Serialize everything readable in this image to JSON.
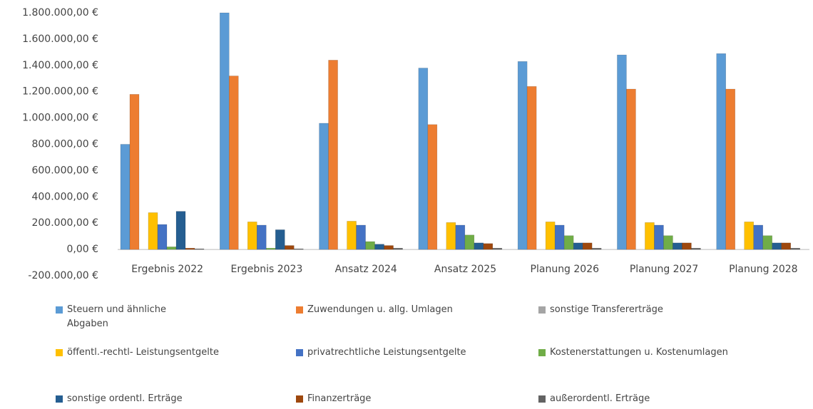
{
  "chart_data": {
    "type": "bar",
    "categories": [
      "Ergebnis 2022",
      "Ergebnis 2023",
      "Ansatz 2024",
      "Ansatz  2025",
      "Planung 2026",
      "Planung 2027",
      "Planung 2028"
    ],
    "series": [
      {
        "name": "Steuern und ähnliche Abgaben",
        "color": "#5b9bd5",
        "values": [
          800000,
          1800000,
          960000,
          1380000,
          1430000,
          1480000,
          1490000
        ]
      },
      {
        "name": "Zuwendungen u. allg. Umlagen",
        "color": "#ed7d31",
        "values": [
          1180000,
          1320000,
          1440000,
          950000,
          1240000,
          1220000,
          1220000
        ]
      },
      {
        "name": "sonstige Transfererträge",
        "color": "#a5a5a5",
        "values": [
          0,
          0,
          0,
          0,
          0,
          0,
          0
        ]
      },
      {
        "name": "öffentl.-rechtl- Leistungsentgelte",
        "color": "#ffc000",
        "values": [
          280000,
          210000,
          215000,
          205000,
          210000,
          205000,
          210000
        ]
      },
      {
        "name": "privatrechtliche Leistungsentgelte",
        "color": "#4472c4",
        "values": [
          190000,
          185000,
          185000,
          185000,
          185000,
          185000,
          185000
        ]
      },
      {
        "name": "Kostenerstattungen u. Kostenumlagen",
        "color": "#70ad47",
        "values": [
          20000,
          10000,
          60000,
          110000,
          105000,
          105000,
          105000
        ]
      },
      {
        "name": "sonstige ordentl. Erträge",
        "color": "#255e91",
        "values": [
          290000,
          150000,
          40000,
          50000,
          50000,
          50000,
          50000
        ]
      },
      {
        "name": "Finanzerträge",
        "color": "#9e480e",
        "values": [
          10000,
          30000,
          30000,
          45000,
          50000,
          50000,
          50000
        ]
      },
      {
        "name": "außerordentl. Erträge",
        "color": "#636363",
        "values": [
          5000,
          5000,
          10000,
          10000,
          10000,
          10000,
          10000
        ]
      }
    ],
    "ylim": [
      -200000,
      1800000
    ],
    "yticks": [
      {
        "value": -200000,
        "label": "-200.000,00 €"
      },
      {
        "value": 0,
        "label": "0,00 €"
      },
      {
        "value": 200000,
        "label": "200.000,00 €"
      },
      {
        "value": 400000,
        "label": "400.000,00 €"
      },
      {
        "value": 600000,
        "label": "600.000,00 €"
      },
      {
        "value": 800000,
        "label": "800.000,00 €"
      },
      {
        "value": 1000000,
        "label": "1.000.000,00 €"
      },
      {
        "value": 1200000,
        "label": "1.200.000,00 €"
      },
      {
        "value": 1400000,
        "label": "1.400.000,00 €"
      },
      {
        "value": 1600000,
        "label": "1.600.000,00 €"
      },
      {
        "value": 1800000,
        "label": "1.800.000,00 €"
      }
    ],
    "grid": false
  }
}
